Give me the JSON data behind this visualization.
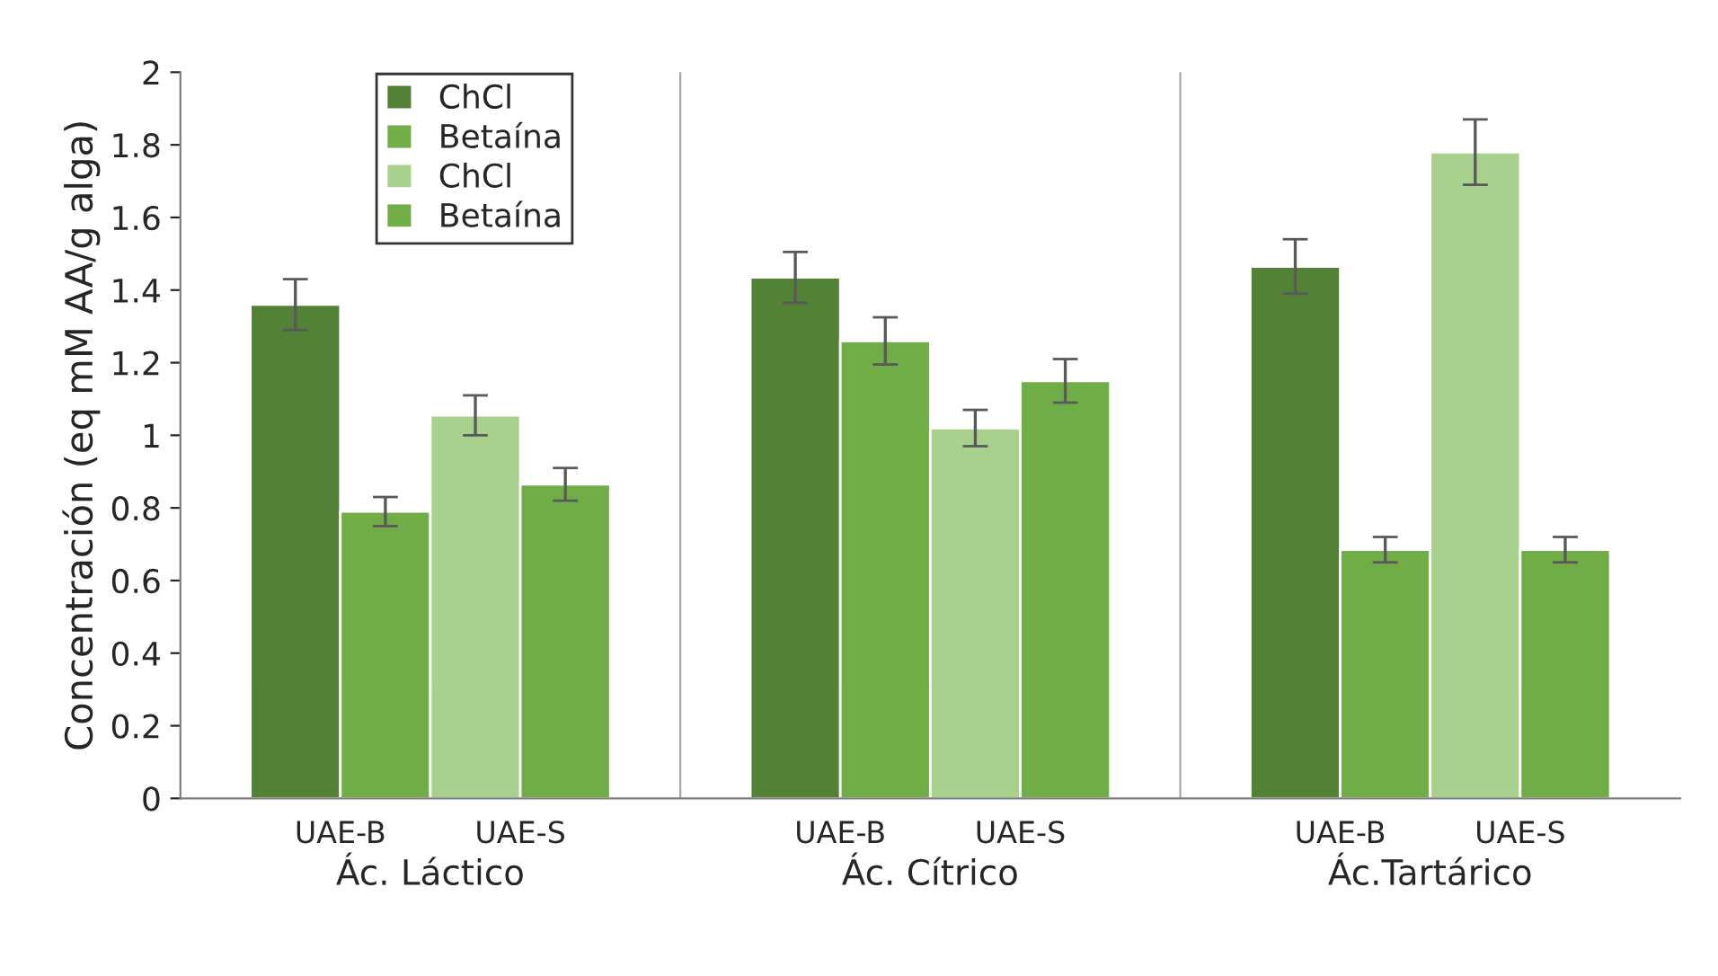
{
  "chart_data": {
    "type": "bar",
    "ylabel": "Concentración (eq mM AA/g alga)",
    "categories": [
      "Ác. Láctico",
      "Ác. Cítrico",
      "Ác.Tartárico"
    ],
    "series": [
      {
        "name": "ChCl",
        "color": "#538135",
        "values": [
          1.36,
          1.435,
          1.465
        ],
        "errors": [
          0.07,
          0.07,
          0.075
        ]
      },
      {
        "name": "Betaína",
        "color": "#70ad47",
        "values": [
          0.79,
          1.26,
          0.685
        ],
        "errors": [
          0.04,
          0.065,
          0.035
        ]
      },
      {
        "name": "ChCl",
        "color": "#a9d18e",
        "values": [
          1.055,
          1.02,
          1.78
        ],
        "errors": [
          0.055,
          0.05,
          0.09
        ]
      },
      {
        "name": "Betaína",
        "color": "#70ad47",
        "values": [
          0.865,
          1.15,
          0.685
        ],
        "errors": [
          0.045,
          0.06,
          0.035
        ]
      }
    ],
    "annotations": [
      "UAE-B",
      "UAE-S",
      "UAE-B",
      "UAE-S",
      "UAE-B",
      "UAE-S"
    ],
    "ylim": [
      0,
      2
    ],
    "yticks": [
      0,
      0.2,
      0.4,
      0.6,
      0.8,
      1,
      1.2,
      1.4,
      1.6,
      1.8,
      2
    ],
    "grid": false,
    "legend": "top left"
  }
}
